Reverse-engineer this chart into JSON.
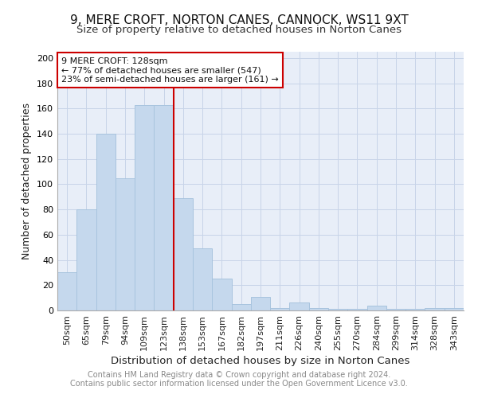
{
  "title1": "9, MERE CROFT, NORTON CANES, CANNOCK, WS11 9XT",
  "title2": "Size of property relative to detached houses in Norton Canes",
  "xlabel": "Distribution of detached houses by size in Norton Canes",
  "ylabel": "Number of detached properties",
  "categories": [
    "50sqm",
    "65sqm",
    "79sqm",
    "94sqm",
    "109sqm",
    "123sqm",
    "138sqm",
    "153sqm",
    "167sqm",
    "182sqm",
    "197sqm",
    "211sqm",
    "226sqm",
    "240sqm",
    "255sqm",
    "270sqm",
    "284sqm",
    "299sqm",
    "314sqm",
    "328sqm",
    "343sqm"
  ],
  "values": [
    30,
    80,
    140,
    105,
    163,
    163,
    89,
    49,
    25,
    5,
    11,
    2,
    6,
    2,
    1,
    1,
    4,
    1,
    1,
    2,
    2
  ],
  "bar_color": "#c5d8ed",
  "bar_edge_color": "#a8c4de",
  "vline_color": "#cc0000",
  "vline_index": 5,
  "annotation_box_text": "9 MERE CROFT: 128sqm\n← 77% of detached houses are smaller (547)\n23% of semi-detached houses are larger (161) →",
  "annotation_box_color": "#cc0000",
  "annotation_box_bg": "#ffffff",
  "ylim": [
    0,
    205
  ],
  "yticks": [
    0,
    20,
    40,
    60,
    80,
    100,
    120,
    140,
    160,
    180,
    200
  ],
  "grid_color": "#c8d4e8",
  "background_color": "#e8eef8",
  "footnote1": "Contains HM Land Registry data © Crown copyright and database right 2024.",
  "footnote2": "Contains public sector information licensed under the Open Government Licence v3.0.",
  "title1_fontsize": 11,
  "title2_fontsize": 9.5,
  "xlabel_fontsize": 9.5,
  "ylabel_fontsize": 9,
  "tick_fontsize": 8,
  "annotation_fontsize": 8,
  "footnote_fontsize": 7
}
